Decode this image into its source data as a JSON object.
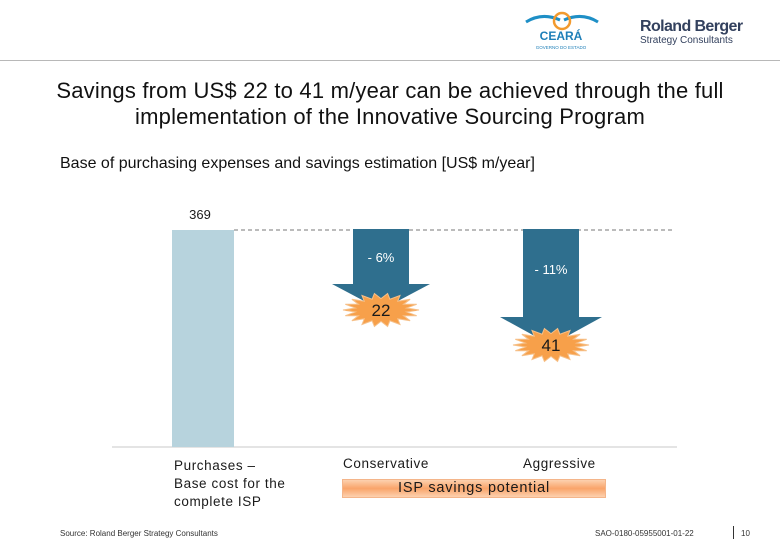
{
  "title": "Savings from US$ 22 to 41 m/year can be achieved through the full implementation of the Innovative Sourcing Program",
  "subtitle": "Base of purchasing expenses and savings estimation [US$ m/year]",
  "logos": {
    "ceara": "CEARÁ",
    "ceara_sub": "GOVERNO DO ESTADO",
    "roland_berger": "Roland Berger",
    "roland_berger_sub": "Strategy Consultants"
  },
  "chart_data": {
    "type": "bar",
    "baseline": {
      "category": "Purchases – Base cost for the complete ISP",
      "label_lines": [
        "Purchases –",
        "Base cost for the",
        "complete ISP"
      ],
      "value": 369
    },
    "scenarios": [
      {
        "category": "Conservative",
        "percent_label": "- 6%",
        "savings": 22
      },
      {
        "category": "Aggressive",
        "percent_label": "- 11%",
        "savings": 41
      }
    ],
    "group_label": "ISP savings potential",
    "colors": {
      "base_bar": "#b7d3dd",
      "arrow": "#2f6f8e",
      "burst": "#f7a04a",
      "burst_edge": "#f6c089"
    }
  },
  "footer": {
    "source": "Source: Roland Berger Strategy Consultants",
    "code": "SAO-0180-05955001-01-22",
    "page": "10"
  }
}
